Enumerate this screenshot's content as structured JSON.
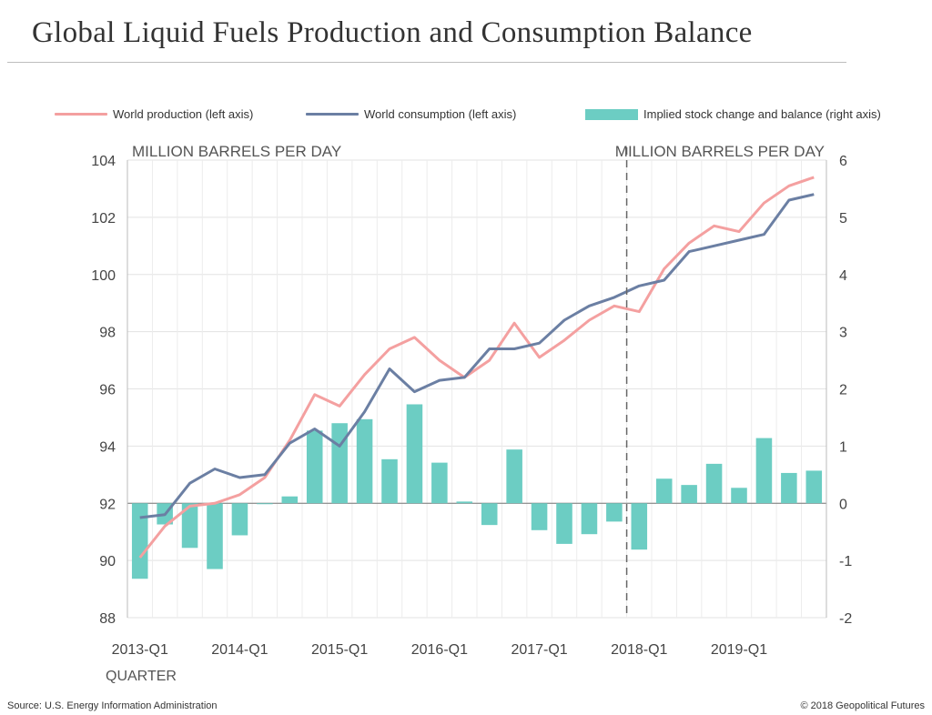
{
  "title": "Global Liquid Fuels Production and Consumption Balance",
  "source": "Source: U.S. Energy Information Administration",
  "copyright": "© 2018 Geopolitical Futures",
  "legend": {
    "production": "World production (left axis)",
    "consumption": "World consumption (left axis)",
    "balance": "Implied stock change and balance (right axis)"
  },
  "colors": {
    "production": "#f4a0a0",
    "consumption": "#6b7fa3",
    "balance": "#6ccdc3"
  },
  "chart_data": {
    "type": "line",
    "left_axis_label": "MILLION BARRELS PER DAY",
    "right_axis_label": "MILLION BARRELS PER DAY",
    "xlabel": "QUARTER",
    "ylim_left": [
      88,
      104
    ],
    "yticks_left": [
      "104",
      "102",
      "100",
      "98",
      "96",
      "94",
      "92",
      "90",
      "88"
    ],
    "ylim_right": [
      -2,
      6
    ],
    "yticks_right": [
      "6",
      "5",
      "4",
      "3",
      "2",
      "1",
      "0",
      "-1",
      "-2"
    ],
    "x_tick_labels": [
      "2013-Q1",
      "2014-Q1",
      "2015-Q1",
      "2016-Q1",
      "2017-Q1",
      "2018-Q1",
      "2019-Q1"
    ],
    "x_tick_indices": [
      0,
      4,
      8,
      12,
      16,
      20,
      24
    ],
    "forecast_start_index": 20,
    "grid": true,
    "categories": [
      "2013-Q1",
      "2013-Q2",
      "2013-Q3",
      "2013-Q4",
      "2014-Q1",
      "2014-Q2",
      "2014-Q3",
      "2014-Q4",
      "2015-Q1",
      "2015-Q2",
      "2015-Q3",
      "2015-Q4",
      "2016-Q1",
      "2016-Q2",
      "2016-Q3",
      "2016-Q4",
      "2017-Q1",
      "2017-Q2",
      "2017-Q3",
      "2017-Q4",
      "2018-Q1",
      "2018-Q2",
      "2018-Q3",
      "2018-Q4",
      "2019-Q1",
      "2019-Q2",
      "2019-Q3",
      "2019-Q4"
    ],
    "series": [
      {
        "name": "World production (left axis)",
        "type": "line",
        "axis": "left",
        "values": [
          90.1,
          91.2,
          91.9,
          92.0,
          92.3,
          92.9,
          94.2,
          95.8,
          95.4,
          96.5,
          97.4,
          97.8,
          97.0,
          96.4,
          97.0,
          98.3,
          97.1,
          97.7,
          98.4,
          98.9,
          98.7,
          100.2,
          101.1,
          101.7,
          101.5,
          102.5,
          103.1,
          103.4
        ]
      },
      {
        "name": "World consumption (left axis)",
        "type": "line",
        "axis": "left",
        "values": [
          91.5,
          91.6,
          92.7,
          93.2,
          92.9,
          93.0,
          94.1,
          94.6,
          94.0,
          95.2,
          96.7,
          95.9,
          96.3,
          96.4,
          97.4,
          97.4,
          97.6,
          98.4,
          98.9,
          99.2,
          99.6,
          99.8,
          100.8,
          101.0,
          101.2,
          101.4,
          102.6,
          102.8
        ]
      },
      {
        "name": "Implied stock change and balance (right axis)",
        "type": "bar",
        "axis": "right",
        "values": [
          -1.32,
          -0.37,
          -0.78,
          -1.15,
          -0.56,
          0.0,
          0.12,
          1.27,
          1.4,
          1.47,
          0.77,
          1.73,
          0.71,
          0.03,
          -0.38,
          0.94,
          -0.47,
          -0.71,
          -0.54,
          -0.32,
          -0.81,
          0.43,
          0.32,
          0.69,
          0.27,
          1.14,
          0.53,
          0.57
        ]
      }
    ]
  }
}
